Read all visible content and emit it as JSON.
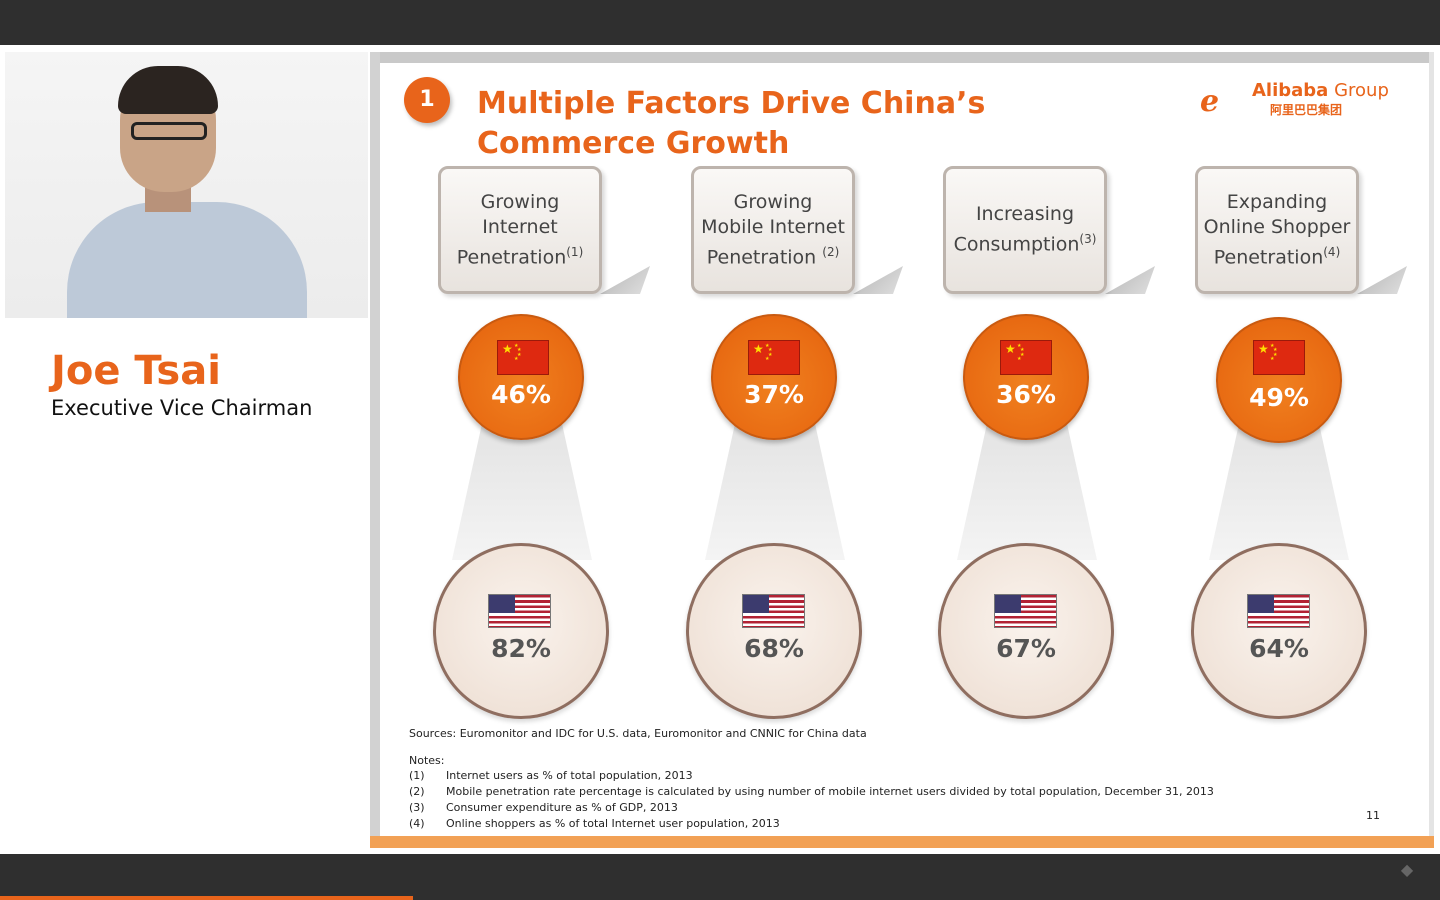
{
  "speaker": {
    "name": "Joe Tsai",
    "role": "Executive Vice Chairman"
  },
  "slide": {
    "number_badge": "1",
    "title": "Multiple Factors Drive China’s Commerce Growth",
    "logo": {
      "brand_bold": "Alibaba",
      "brand_light": " Group",
      "chinese": "阿里巴巴集团"
    },
    "factors": [
      {
        "label_line1": "Growing",
        "label_line2": "Internet",
        "label_line3": "Penetration",
        "note": "(1)",
        "china": "46%",
        "us": "82%"
      },
      {
        "label_line1": "Growing",
        "label_line2": "Mobile Internet",
        "label_line3": "Penetration",
        "note": "(2)",
        "china": "37%",
        "us": "68%"
      },
      {
        "label_line1": "Increasing",
        "label_line2": "Consumption",
        "label_line3": "",
        "note": "(3)",
        "china": "36%",
        "us": "67%"
      },
      {
        "label_line1": "Expanding",
        "label_line2": "Online Shopper",
        "label_line3": "Penetration",
        "note": "(4)",
        "china": "49%",
        "us": "64%"
      }
    ],
    "sources": "Sources: Euromonitor and IDC for U.S. data, Euromonitor and CNNIC for China data",
    "notes_label": "Notes:",
    "notes": [
      {
        "num": "(1)",
        "text": "Internet users as % of total population, 2013"
      },
      {
        "num": "(2)",
        "text": "Mobile penetration rate percentage is calculated by using number of mobile internet users divided by total population, December 31, 2013"
      },
      {
        "num": "(3)",
        "text": "Consumer expenditure as % of GDP, 2013"
      },
      {
        "num": "(4)",
        "text": "Online shoppers as % of total Internet user population, 2013"
      }
    ],
    "page_number": "11"
  },
  "colors": {
    "accent": "#e8641b",
    "china_circle": "#e86a12",
    "us_circle_border": "#8f6e60"
  },
  "player": {
    "progress_fraction": 0.287
  }
}
